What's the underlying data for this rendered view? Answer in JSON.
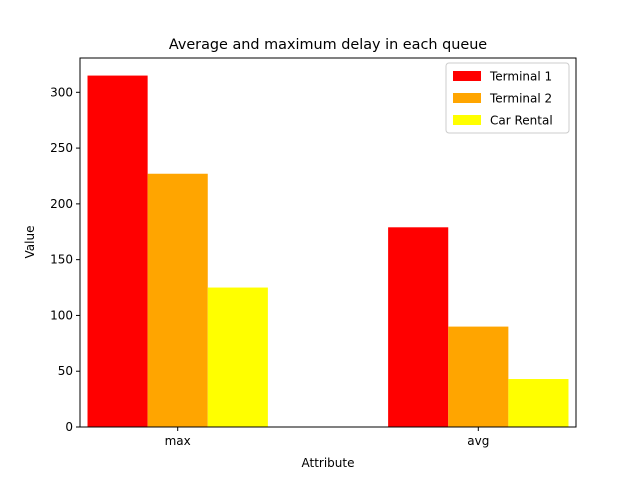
{
  "chart_data": {
    "type": "bar",
    "title": "Average and maximum delay in each queue",
    "xlabel": "Attribute",
    "ylabel": "Value",
    "categories": [
      "max",
      "avg"
    ],
    "series": [
      {
        "name": "Terminal 1",
        "color": "#ff0000",
        "values": [
          315,
          179
        ]
      },
      {
        "name": "Terminal 2",
        "color": "#ffa500",
        "values": [
          227,
          90
        ]
      },
      {
        "name": "Car Rental",
        "color": "#ffff00",
        "values": [
          125,
          43
        ]
      }
    ],
    "ylim": [
      0,
      330.75
    ],
    "yticks": [
      0,
      50,
      100,
      150,
      200,
      250,
      300
    ],
    "grid": false,
    "legend_position": "top-right"
  }
}
